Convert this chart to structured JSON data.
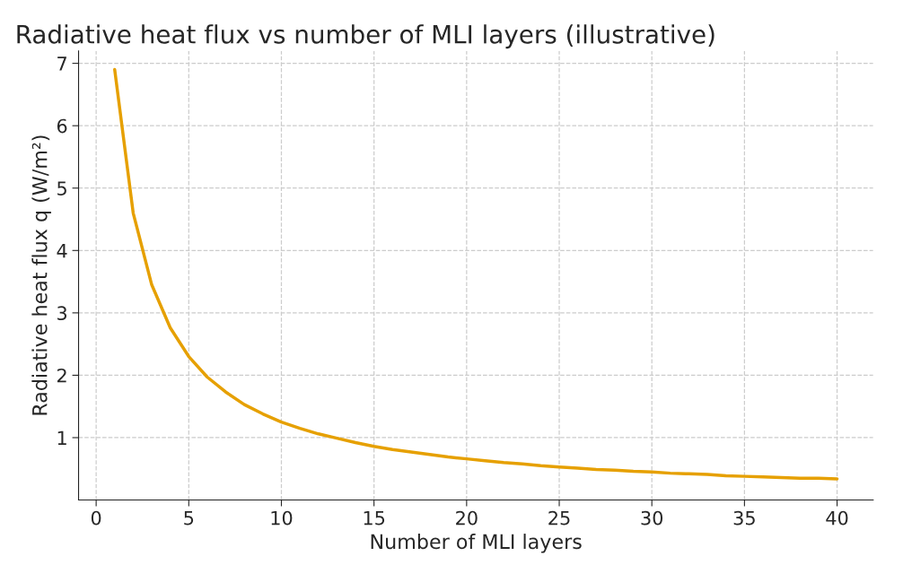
{
  "chart_data": {
    "type": "line",
    "title": "Radiative heat flux vs number of MLI layers (illustrative)",
    "xlabel": "Number of MLI layers",
    "ylabel": "Radiative heat flux q (W/m²)",
    "x": [
      1,
      2,
      3,
      4,
      5,
      6,
      7,
      8,
      9,
      10,
      11,
      12,
      13,
      14,
      15,
      16,
      17,
      18,
      19,
      20,
      21,
      22,
      23,
      24,
      25,
      26,
      27,
      28,
      29,
      30,
      31,
      32,
      33,
      34,
      35,
      36,
      37,
      38,
      39,
      40
    ],
    "series": [
      {
        "color": "#e6a000",
        "values": [
          6.9,
          4.6,
          3.45,
          2.76,
          2.3,
          1.97,
          1.73,
          1.53,
          1.38,
          1.25,
          1.15,
          1.06,
          0.99,
          0.92,
          0.86,
          0.81,
          0.77,
          0.73,
          0.69,
          0.66,
          0.63,
          0.6,
          0.58,
          0.55,
          0.53,
          0.51,
          0.49,
          0.48,
          0.46,
          0.45,
          0.43,
          0.42,
          0.41,
          0.39,
          0.38,
          0.37,
          0.36,
          0.35,
          0.35,
          0.34
        ]
      }
    ],
    "xlim": [
      -0.95,
      41.95
    ],
    "ylim": [
      0,
      7.2
    ],
    "xticks": [
      0,
      5,
      10,
      15,
      20,
      25,
      30,
      35,
      40
    ],
    "yticks": [
      1,
      2,
      3,
      4,
      5,
      6,
      7
    ],
    "grid": true,
    "line_style": "solid",
    "marker": "none"
  }
}
